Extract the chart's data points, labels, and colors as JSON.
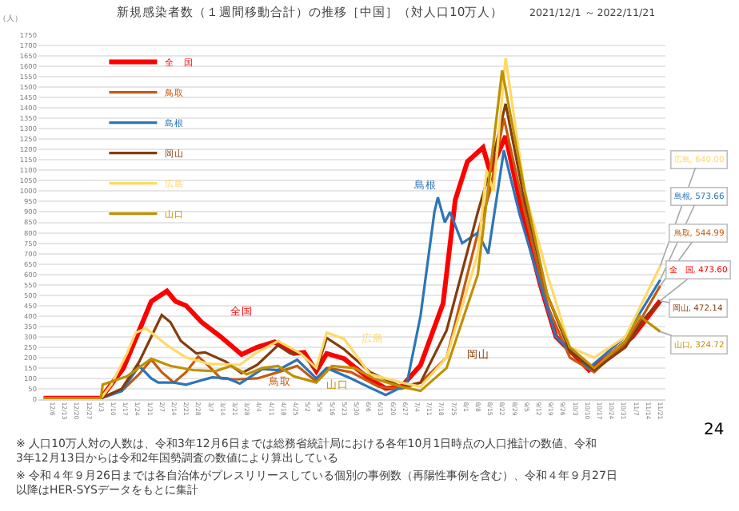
{
  "chart_data": {
    "type": "line",
    "title": "新規感染者数（１週間移動合計）の推移［中国］（対人口10万人）",
    "subtitle": "2021/12/1 ～ 2022/11/21",
    "ylabel": "（人）",
    "ylim": [
      0,
      1750
    ],
    "yticks": [
      0,
      50,
      100,
      150,
      200,
      250,
      300,
      350,
      400,
      450,
      500,
      550,
      600,
      650,
      700,
      750,
      800,
      850,
      900,
      950,
      1000,
      1050,
      1100,
      1150,
      1200,
      1250,
      1300,
      1350,
      1400,
      1450,
      1500,
      1550,
      1600,
      1650,
      1700,
      1750
    ],
    "xlim": [
      "2021-11-28",
      "2022-11-24"
    ],
    "xticks": [
      {
        "value": "2021-12-06",
        "label": "12/6"
      },
      {
        "value": "2021-12-13",
        "label": "12/13"
      },
      {
        "value": "2021-12-20",
        "label": "12/20"
      },
      {
        "value": "2021-12-27",
        "label": "12/27"
      },
      {
        "value": "2022-01-03",
        "label": "1/3"
      },
      {
        "value": "2022-01-10",
        "label": "1/10"
      },
      {
        "value": "2022-01-17",
        "label": "1/17"
      },
      {
        "value": "2022-01-24",
        "label": "1/24"
      },
      {
        "value": "2022-01-31",
        "label": "1/31"
      },
      {
        "value": "2022-02-07",
        "label": "2/7"
      },
      {
        "value": "2022-02-14",
        "label": "2/14"
      },
      {
        "value": "2022-02-21",
        "label": "2/21"
      },
      {
        "value": "2022-02-28",
        "label": "2/28"
      },
      {
        "value": "2022-03-07",
        "label": "3/7"
      },
      {
        "value": "2022-03-14",
        "label": "3/14"
      },
      {
        "value": "2022-03-21",
        "label": "3/21"
      },
      {
        "value": "2022-03-28",
        "label": "3/28"
      },
      {
        "value": "2022-04-04",
        "label": "4/4"
      },
      {
        "value": "2022-04-11",
        "label": "4/11"
      },
      {
        "value": "2022-04-18",
        "label": "4/18"
      },
      {
        "value": "2022-04-25",
        "label": "4/25"
      },
      {
        "value": "2022-05-02",
        "label": "5/2"
      },
      {
        "value": "2022-05-09",
        "label": "5/9"
      },
      {
        "value": "2022-05-16",
        "label": "5/16"
      },
      {
        "value": "2022-05-23",
        "label": "5/23"
      },
      {
        "value": "2022-05-30",
        "label": "5/30"
      },
      {
        "value": "2022-06-06",
        "label": "6/6"
      },
      {
        "value": "2022-06-13",
        "label": "6/13"
      },
      {
        "value": "2022-06-20",
        "label": "6/20"
      },
      {
        "value": "2022-06-27",
        "label": "6/27"
      },
      {
        "value": "2022-07-04",
        "label": "7/4"
      },
      {
        "value": "2022-07-11",
        "label": "7/11"
      },
      {
        "value": "2022-07-18",
        "label": "7/18"
      },
      {
        "value": "2022-07-25",
        "label": "7/25"
      },
      {
        "value": "2022-08-01",
        "label": "8/1"
      },
      {
        "value": "2022-08-08",
        "label": "8/8"
      },
      {
        "value": "2022-08-15",
        "label": "8/15"
      },
      {
        "value": "2022-08-22",
        "label": "8/22"
      },
      {
        "value": "2022-08-29",
        "label": "8/29"
      },
      {
        "value": "2022-09-05",
        "label": "9/5"
      },
      {
        "value": "2022-09-12",
        "label": "9/12"
      },
      {
        "value": "2022-09-19",
        "label": "9/19"
      },
      {
        "value": "2022-09-26",
        "label": "9/26"
      },
      {
        "value": "2022-10-03",
        "label": "10/3"
      },
      {
        "value": "2022-10-10",
        "label": "10/10"
      },
      {
        "value": "2022-10-17",
        "label": "10/17"
      },
      {
        "value": "2022-10-24",
        "label": "10/24"
      },
      {
        "value": "2022-10-31",
        "label": "10/31"
      },
      {
        "value": "2022-11-07",
        "label": "11/7"
      },
      {
        "value": "2022-11-14",
        "label": "11/14"
      },
      {
        "value": "2022-11-21",
        "label": "11/21"
      }
    ],
    "grid": "y",
    "legend": "top left",
    "marker": "none",
    "line_style": "solid",
    "series": [
      {
        "name": "全　国",
        "color": "#ff0000",
        "x": [
          "2021-12-01",
          "2022-01-03",
          "2022-01-16",
          "2022-01-25",
          "2022-02-01",
          "2022-02-10",
          "2022-02-15",
          "2022-02-21",
          "2022-03-02",
          "2022-03-13",
          "2022-03-25",
          "2022-04-03",
          "2022-04-13",
          "2022-04-24",
          "2022-04-30",
          "2022-05-07",
          "2022-05-13",
          "2022-05-23",
          "2022-06-07",
          "2022-06-16",
          "2022-06-25",
          "2022-07-06",
          "2022-07-19",
          "2022-07-26",
          "2022-08-02",
          "2022-08-11",
          "2022-08-15",
          "2022-08-24",
          "2022-09-04",
          "2022-09-13",
          "2022-09-22",
          "2022-10-03",
          "2022-10-11",
          "2022-10-21",
          "2022-11-05",
          "2022-11-21"
        ],
        "values": [
          5,
          5,
          150,
          330,
          470,
          520,
          470,
          450,
          370,
          300,
          215,
          250,
          275,
          220,
          225,
          135,
          220,
          195,
          95,
          52,
          60,
          163,
          460,
          958,
          1142,
          1210,
          1095,
          1265,
          845,
          550,
          300,
          209,
          141,
          198,
          300,
          473.6
        ]
      },
      {
        "name": "鳥取",
        "color": "#c55a11",
        "x": [
          "2021-12-01",
          "2022-01-03",
          "2022-01-15",
          "2022-01-25",
          "2022-02-01",
          "2022-02-07",
          "2022-02-14",
          "2022-02-21",
          "2022-02-28",
          "2022-03-06",
          "2022-03-13",
          "2022-03-21",
          "2022-04-03",
          "2022-04-15",
          "2022-04-26",
          "2022-05-07",
          "2022-05-14",
          "2022-05-27",
          "2022-06-12",
          "2022-06-25",
          "2022-07-06",
          "2022-07-21",
          "2022-08-08",
          "2022-08-15",
          "2022-08-23",
          "2022-09-04",
          "2022-09-17",
          "2022-09-30",
          "2022-10-14",
          "2022-11-01",
          "2022-11-11",
          "2022-11-21"
        ],
        "values": [
          5,
          5,
          40,
          120,
          190,
          130,
          80,
          130,
          205,
          160,
          100,
          95,
          100,
          130,
          160,
          85,
          150,
          130,
          60,
          50,
          80,
          200,
          800,
          1000,
          1350,
          900,
          450,
          200,
          130,
          270,
          400,
          544.99
        ]
      },
      {
        "name": "島根",
        "color": "#2e75b6",
        "x": [
          "2021-12-01",
          "2022-01-03",
          "2022-01-15",
          "2022-01-25",
          "2022-02-01",
          "2022-02-05",
          "2022-02-14",
          "2022-02-21",
          "2022-03-08",
          "2022-03-17",
          "2022-03-24",
          "2022-04-06",
          "2022-04-15",
          "2022-04-26",
          "2022-05-07",
          "2022-05-13",
          "2022-05-27",
          "2022-06-07",
          "2022-06-16",
          "2022-06-28",
          "2022-07-06",
          "2022-07-14",
          "2022-07-16",
          "2022-07-20",
          "2022-07-23",
          "2022-07-30",
          "2022-08-08",
          "2022-08-14",
          "2022-08-23",
          "2022-09-01",
          "2022-09-13",
          "2022-09-22",
          "2022-10-11",
          "2022-11-01",
          "2022-11-21"
        ],
        "values": [
          5,
          5,
          40,
          160,
          100,
          80,
          80,
          70,
          105,
          100,
          75,
          145,
          140,
          190,
          100,
          150,
          100,
          55,
          20,
          70,
          400,
          900,
          970,
          850,
          900,
          750,
          800,
          700,
          1196,
          890,
          550,
          300,
          150,
          300,
          573.66
        ]
      },
      {
        "name": "岡山",
        "color": "#843c0c",
        "x": [
          "2021-12-01",
          "2022-01-03",
          "2022-01-15",
          "2022-01-25",
          "2022-02-01",
          "2022-02-07",
          "2022-02-12",
          "2022-02-18",
          "2022-02-27",
          "2022-03-04",
          "2022-03-16",
          "2022-03-25",
          "2022-04-03",
          "2022-04-15",
          "2022-04-22",
          "2022-04-28",
          "2022-05-07",
          "2022-05-13",
          "2022-05-23",
          "2022-06-07",
          "2022-06-25",
          "2022-07-06",
          "2022-07-21",
          "2022-08-08",
          "2022-08-15",
          "2022-08-24",
          "2022-09-04",
          "2022-09-17",
          "2022-09-30",
          "2022-10-14",
          "2022-11-01",
          "2022-11-11",
          "2022-11-21"
        ],
        "values": [
          5,
          5,
          50,
          180,
          300,
          405,
          370,
          280,
          220,
          225,
          180,
          125,
          165,
          260,
          220,
          225,
          140,
          295,
          240,
          130,
          60,
          80,
          330,
          900,
          1100,
          1420,
          950,
          500,
          230,
          140,
          250,
          380,
          472.14
        ]
      },
      {
        "name": "広島",
        "color": "#ffd966",
        "x": [
          "2021-12-01",
          "2022-01-03",
          "2022-01-09",
          "2022-01-18",
          "2022-01-23",
          "2022-01-29",
          "2022-02-10",
          "2022-02-21",
          "2022-03-06",
          "2022-03-24",
          "2022-04-02",
          "2022-04-15",
          "2022-04-28",
          "2022-05-07",
          "2022-05-13",
          "2022-05-23",
          "2022-06-07",
          "2022-06-25",
          "2022-07-06",
          "2022-07-21",
          "2022-08-08",
          "2022-08-13",
          "2022-08-17",
          "2022-08-24",
          "2022-09-04",
          "2022-09-17",
          "2022-09-30",
          "2022-10-14",
          "2022-11-01",
          "2022-11-21"
        ],
        "values": [
          5,
          5,
          70,
          220,
          320,
          340,
          260,
          200,
          170,
          165,
          220,
          280,
          220,
          150,
          320,
          290,
          120,
          80,
          60,
          200,
          700,
          1100,
          1000,
          1640,
          1000,
          600,
          250,
          200,
          300,
          640.0
        ]
      },
      {
        "name": "山口",
        "color": "#bf9000",
        "x": [
          "2021-12-01",
          "2022-01-03",
          "2022-01-04",
          "2022-01-18",
          "2022-02-01",
          "2022-02-12",
          "2022-02-25",
          "2022-03-10",
          "2022-03-19",
          "2022-03-28",
          "2022-04-06",
          "2022-04-15",
          "2022-04-24",
          "2022-05-07",
          "2022-05-16",
          "2022-05-29",
          "2022-06-09",
          "2022-06-25",
          "2022-07-06",
          "2022-07-21",
          "2022-08-08",
          "2022-08-22",
          "2022-09-04",
          "2022-09-17",
          "2022-09-30",
          "2022-10-14",
          "2022-11-01",
          "2022-11-09",
          "2022-11-21"
        ],
        "values": [
          5,
          5,
          70,
          110,
          195,
          160,
          140,
          135,
          160,
          120,
          150,
          160,
          110,
          80,
          160,
          150,
          100,
          60,
          40,
          150,
          600,
          1580,
          1000,
          500,
          250,
          150,
          280,
          400,
          324.72
        ]
      }
    ],
    "annotations": [
      "全国",
      "島根",
      "鳥取",
      "山口",
      "広島",
      "岡山",
      {
        "text": "広島, 640.00",
        "x": "2022-11-21",
        "y": 640.0
      },
      {
        "text": "島根, 573.66",
        "x": "2022-11-21",
        "y": 573.66
      },
      {
        "text": "鳥取, 544.99",
        "x": "2022-11-21",
        "y": 544.99
      },
      {
        "text": "全　国, 473.60",
        "x": "2022-11-21",
        "y": 473.6
      },
      {
        "text": "岡山, 472.14",
        "x": "2022-11-21",
        "y": 472.14
      },
      {
        "text": "山口, 324.72",
        "x": "2022-11-21",
        "y": 324.72
      },
      "※ 人口10万人対の人数は、令和3年12月6日までは総務省統計局における各年10月1日時点の人口推計の数値、令和3年12月13日からは令和2年国勢調査の数値により算出している",
      "※ 令和４年９月26日までは各自治体がプレスリリースしている個別の事例数（再陽性事例を含む）、令和４年９月27日以降はHER-SYSデータをもとに集計",
      "24"
    ]
  }
}
